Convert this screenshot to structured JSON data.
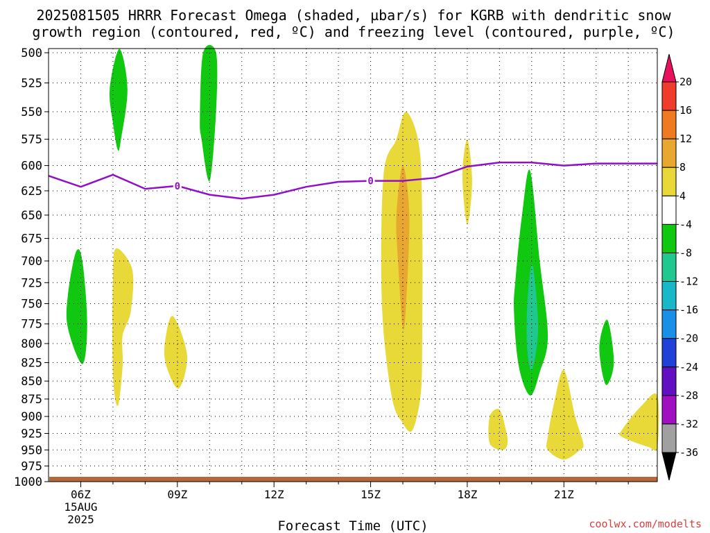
{
  "title_line1": "2025081505 HRRR Forecast Omega (shaded, µbar/s) for KGRB with dendritic snow",
  "title_line2": "growth region (contoured, red, ºC) and freezing level (contoured, purple, ºC)",
  "credit": "coolwx.com/modelts",
  "chart_data": {
    "type": "heatmap",
    "xlabel": "Forecast Time (UTC)",
    "ylabel": "",
    "y_ticks": [
      500,
      525,
      550,
      575,
      600,
      625,
      650,
      675,
      700,
      725,
      750,
      775,
      800,
      825,
      850,
      875,
      900,
      925,
      950,
      975,
      1000
    ],
    "y_range": [
      500,
      1000
    ],
    "y_scale": "log-pressure",
    "x_range": [
      5,
      23.9
    ],
    "x_ticks": [
      {
        "hour": 6,
        "label": "06Z",
        "sub1": "15AUG",
        "sub2": "2025"
      },
      {
        "hour": 9,
        "label": "09Z"
      },
      {
        "hour": 12,
        "label": "12Z"
      },
      {
        "hour": 15,
        "label": "15Z"
      },
      {
        "hour": 18,
        "label": "18Z"
      },
      {
        "hour": 21,
        "label": "21Z"
      }
    ],
    "grid": true,
    "colorbar": {
      "labels": [
        "20",
        "16",
        "12",
        "8",
        "4",
        "-4",
        "-8",
        "-12",
        "-16",
        "-20",
        "-24",
        "-28",
        "-32",
        "-36"
      ],
      "colors": [
        "#e8105f",
        "#f03c2a",
        "#f07a22",
        "#e8a830",
        "#e8d838",
        "#ffffff",
        "#10c810",
        "#20c890",
        "#18b8c8",
        "#1890e8",
        "#2040d8",
        "#6010c0",
        "#a010c0",
        "#a0a0a0",
        "#000000"
      ]
    },
    "freezing_level": {
      "color": "#9010c8",
      "contour_label": "0",
      "label_hours": [
        9,
        15
      ],
      "points": [
        [
          5,
          610
        ],
        [
          6,
          621
        ],
        [
          7,
          609
        ],
        [
          8,
          623
        ],
        [
          9,
          620
        ],
        [
          10,
          629
        ],
        [
          11,
          633
        ],
        [
          12,
          629
        ],
        [
          13,
          621
        ],
        [
          14,
          616
        ],
        [
          15,
          615
        ],
        [
          16,
          615
        ],
        [
          17,
          612
        ],
        [
          18,
          601
        ],
        [
          19,
          597
        ],
        [
          20,
          597
        ],
        [
          21,
          600
        ],
        [
          22,
          598
        ],
        [
          23,
          598
        ],
        [
          23.9,
          598
        ]
      ]
    },
    "omega_regions": [
      {
        "value": "-4",
        "color": "#10c810",
        "points": [
          [
            6.9,
            530
          ],
          [
            7.2,
            497
          ],
          [
            7.45,
            530
          ],
          [
            7.25,
            575
          ],
          [
            7.15,
            585
          ],
          [
            7.0,
            560
          ]
        ]
      },
      {
        "value": "-4",
        "color": "#10c810",
        "points": [
          [
            9.8,
            500
          ],
          [
            10.2,
            500
          ],
          [
            10.2,
            550
          ],
          [
            10.0,
            615
          ],
          [
            9.75,
            575
          ],
          [
            9.7,
            555
          ]
        ]
      },
      {
        "value": "-4",
        "color": "#10c810",
        "points": [
          [
            5.6,
            740
          ],
          [
            5.85,
            690
          ],
          [
            6.05,
            700
          ],
          [
            6.2,
            775
          ],
          [
            6.05,
            827
          ],
          [
            5.6,
            780
          ]
        ]
      },
      {
        "value": "-4",
        "color": "#10c810",
        "points": [
          [
            22.1,
            805
          ],
          [
            22.35,
            770
          ],
          [
            22.55,
            825
          ],
          [
            22.3,
            855
          ]
        ]
      },
      {
        "value": "-4",
        "color": "#10c810",
        "points": [
          [
            19.5,
            720
          ],
          [
            19.7,
            650
          ],
          [
            19.95,
            605
          ],
          [
            20.25,
            700
          ],
          [
            20.5,
            790
          ],
          [
            20.25,
            838
          ],
          [
            19.95,
            870
          ],
          [
            19.6,
            830
          ],
          [
            19.45,
            760
          ]
        ]
      },
      {
        "value": "-8",
        "color": "#20c890",
        "points": [
          [
            19.88,
            740
          ],
          [
            20.03,
            705
          ],
          [
            20.2,
            780
          ],
          [
            20.0,
            835
          ],
          [
            19.85,
            800
          ]
        ]
      },
      {
        "value": "4",
        "color": "#e8d838",
        "points": [
          [
            7.0,
            720
          ],
          [
            7.1,
            686
          ],
          [
            7.6,
            710
          ],
          [
            7.55,
            760
          ],
          [
            7.3,
            790
          ],
          [
            7.3,
            830
          ],
          [
            7.15,
            885
          ],
          [
            7.0,
            840
          ]
        ]
      },
      {
        "value": "4",
        "color": "#e8d838",
        "points": [
          [
            8.6,
            805
          ],
          [
            8.85,
            765
          ],
          [
            9.3,
            815
          ],
          [
            9.05,
            860
          ],
          [
            8.7,
            835
          ]
        ]
      },
      {
        "value": "4",
        "color": "#e8d838",
        "points": [
          [
            15.4,
            610
          ],
          [
            15.8,
            575
          ],
          [
            16.1,
            550
          ],
          [
            16.5,
            580
          ],
          [
            16.6,
            650
          ],
          [
            16.6,
            800
          ],
          [
            16.55,
            870
          ],
          [
            16.3,
            920
          ],
          [
            16.0,
            910
          ],
          [
            15.65,
            870
          ],
          [
            15.35,
            750
          ]
        ]
      },
      {
        "value": "8",
        "color": "#e8a830",
        "points": [
          [
            15.8,
            650
          ],
          [
            16.0,
            600
          ],
          [
            16.2,
            650
          ],
          [
            16.1,
            750
          ],
          [
            16.0,
            780
          ],
          [
            15.85,
            700
          ]
        ]
      },
      {
        "value": "4",
        "color": "#e8d838",
        "points": [
          [
            17.85,
            610
          ],
          [
            18.0,
            575
          ],
          [
            18.15,
            615
          ],
          [
            18.0,
            660
          ]
        ]
      },
      {
        "value": "4",
        "color": "#e8d838",
        "points": [
          [
            18.7,
            900
          ],
          [
            19.0,
            890
          ],
          [
            19.2,
            920
          ],
          [
            19.25,
            940
          ],
          [
            19.1,
            950
          ],
          [
            18.7,
            940
          ]
        ]
      },
      {
        "value": "4",
        "color": "#e8d838",
        "points": [
          [
            20.5,
            930
          ],
          [
            20.7,
            880
          ],
          [
            21.0,
            835
          ],
          [
            21.35,
            900
          ],
          [
            21.6,
            940
          ],
          [
            21.5,
            950
          ],
          [
            21.0,
            965
          ],
          [
            20.5,
            950
          ]
        ]
      },
      {
        "value": "4",
        "color": "#e8d838",
        "points": [
          [
            22.8,
            920
          ],
          [
            23.4,
            885
          ],
          [
            23.9,
            870
          ],
          [
            23.9,
            945
          ],
          [
            23.6,
            945
          ],
          [
            22.8,
            930
          ]
        ]
      }
    ]
  }
}
